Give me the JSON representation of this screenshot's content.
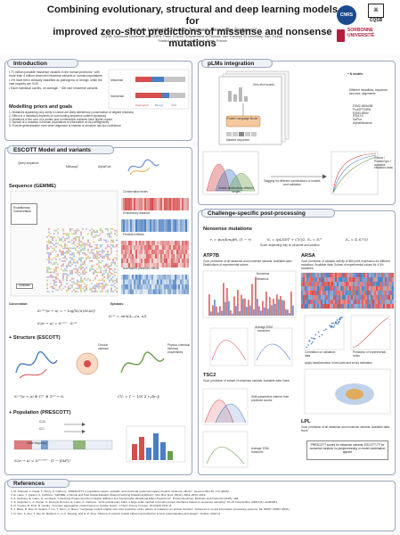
{
  "header": {
    "title_line1": "Combining evolutionary, structural and deep learning models for",
    "title_line2": "improved zero-shot predictions of missense and nonsense mutations",
    "authors": "Gianluca Lombardi¹, Mustafa Tekpinar², Alessandra Carbone¹,³",
    "affil1": "¹CQSB, Sorbonne Université and CNRS, Paris, France; ²Department of Physics, Van Yüzüncü Yıl University, Van, Turkiye;",
    "affil2": "³Institut Universitaire de France, Paris, France",
    "logo_cnrs": "CNRS",
    "logo_cqsb": "CQSB",
    "logo_sorbonne_line1": "SORBONNE",
    "logo_sorbonne_line2": "UNIVERSITÉ"
  },
  "intro": {
    "heading": "Introduction",
    "bullets": [
      "71 million possible missense variants in the human proteome, with more than 4 million observed missense variants in human populations",
      "2% have been clinically classified as pathogenic or benign, while the vast majority are VUS",
      "Each individual carries, on average, ~300 rare missense variants"
    ],
    "chart_labels": [
      "Pathogenic",
      "Benign",
      "VUS"
    ],
    "chart_sub": [
      "Missense",
      "Nonsense"
    ]
  },
  "modelling": {
    "heading": "Modelling priors and goals",
    "items": [
      "1. Mutations appearing very rarely in nature are likely deleterious (conservation of aligned residues)",
      "2. Effect of a mutations depends on surrounding sequence context (epistasis)",
      "3. Mutations in the core of a protein and in interaction surfaces have higher impact",
      "4. Spread of a mutation in human populations is informative on its pathogenicity",
      "5. Provide generalization even when alignment is shallow or structure has low confidence"
    ]
  },
  "plm": {
    "heading": "pLMs integration",
    "n_models": "+ N models",
    "zero_shot": "Zero-shot scores",
    "box_label": "Protein Language Model",
    "input_label": "Masked sequence",
    "modalities": "Different modalities: sequence, structure, alignments",
    "model_list": [
      "ESM2-650M/3B",
      "ProtGPT2/RW",
      "ESM3-650M",
      "ESM-1V",
      "SaProt",
      "AlphaMissense"
    ],
    "similar": "Similar distributions different ranges",
    "bagging": "Bagging for different combinations of models and validation",
    "clinvar": "Clinvar / ProteinGym / available validation data"
  },
  "escott": {
    "heading": "ESCOTT Model and variants",
    "query_seq": "Query sequence",
    "msa": "MMseqs2",
    "af": "AlphaFold",
    "seq_heading": "Sequence (GEMME)",
    "evo_cons": "Evolutionary Conservation",
    "cons_levels": "Conservation levels",
    "evo_dist": "Evolutionary distance",
    "pred_effects": "Predicted effects",
    "norm_pred": "Normalized predicted effects",
    "epistasis": "Epistasis",
    "conservation_eq": "Conservation:",
    "epistasis_eq": "Epistasis:",
    "struct_heading": "+ Structure (ESCOTT)",
    "circ_var": "Circular variance",
    "phys_chem": "Physico-chemical interface propensities",
    "pop_heading": "+ Population (PRESCOTT)",
    "ccd": "CCA",
    "cci": "CCI",
    "allele": "Allele frequency"
  },
  "challenge": {
    "heading": "Challenge-specific post-processing",
    "nonsense_heading": "Nonsense mutations",
    "nonsense_note": "Score depending only on structure and position",
    "atp7b": {
      "heading": "ATP7B",
      "desc": "Goal: prediction of all missense and nonsense variants. Available data: Distributions of experimental scores",
      "legend": [
        "Nonsense",
        "Missense"
      ],
      "box_label": "Average ESM transform"
    },
    "arsa": {
      "heading": "ARSA",
      "desc": "Goal: prediction of catalytic activity of 880 point expression for different mutations. Available data: Subset of experimental values for 4.4% mutations",
      "corr_label": "Correlation on validation data",
      "fit_label": "Prediction of experimental ranks",
      "dist_label": "Apply transformation in test data and errors estimates"
    },
    "tsc2": {
      "heading": "TSC2",
      "desc": "Goal: prediction of subset of missense variants. Available data: None",
      "note": "Shift parameters inferred from predicted scores",
      "box_label": "Average ESM transform"
    },
    "lpl": {
      "heading": "LPL",
      "desc": "Goal: prediction of all missense and nonsense variants. Available data: None",
      "note": "PRESCOTT scores for missense variants; ESCOTT-TF for nonsense variants; no postprocessing or model combination applied"
    }
  },
  "references": {
    "heading": "References",
    "items": [
      "1. M. Tekpinar, L. David, T. Henry, A. Carbone. \"PRESCOTT: a population aware, epistatic, and structural model accurately predicts missense effects\". Genome Biol 26, 172 (2025).",
      "2. E. Laine, Y. Karami, A. Carbone. \"GEMME: A Simple and Fast Global Epistatic Model Predicting Mutational Effects\". Mol. Biol. Evol. 36(11), 2604–2619, 2019.",
      "3. A. Carbone, E. Laine, G. Lombardi. \"Unlocking Protein Function Insights: Efficient and Interpretable Mutational Effect Predictions\". Protein Evolution, Methods and Protocols (2025). 199.",
      "4. S. Grigoriev, L. A. Poppe, S. Devuyst-Hermes, E. Laine, A. Carbone. \"Joint evolutionary traits: a large-scale method to predict protein interfaces based on sequence sampling\". PLoS Comput Biol. 2009;5(1): e1000281.",
      "5. N. Cooley, M. Post, R. Landry. \"A protein aggregation model based on residue burial\". J Chem Theory Comput. 2013;9(6):2141–8.",
      "6. J. Meier, R. Rao, R. Verkuil, J. Liu, T. Sercu, A. Rives. \"Language models enable zero-shot prediction of the effects of mutations on protein function\". Advances in neural information processing systems, 34: 29287–29303 (2021).",
      "7. N. Sun, S. Zou, T. Tao, M. Markiud, C. Li, F. Zhuang, and G. P. Xing. \"Mixture of experts enable efficient and effective protein understanding and design\". bioRxiv, 2024.11"
    ]
  }
}
